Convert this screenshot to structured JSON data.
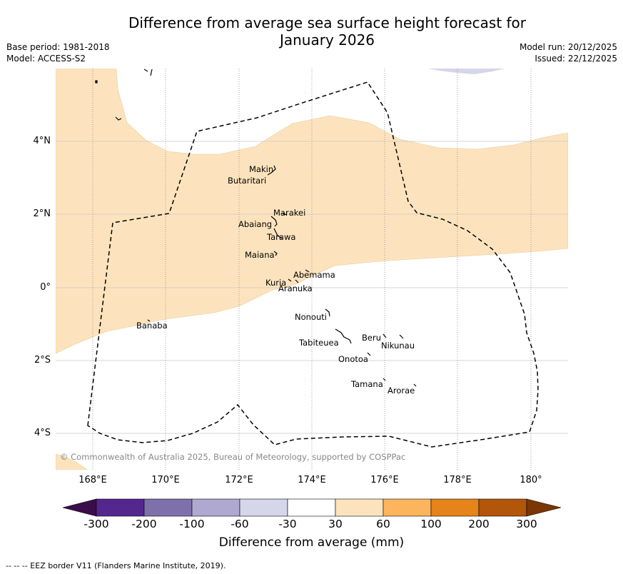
{
  "title": {
    "line1": "Difference from average sea surface height forecast for",
    "line2": "January 2026"
  },
  "meta": {
    "base_period": "Base period: 1981-2018",
    "model": "Model: ACCESS-S2",
    "model_run": "Model run: 20/12/2025",
    "issued": "Issued: 22/12/2025"
  },
  "map": {
    "lat_labels": [
      "4°N",
      "2°N",
      "0°",
      "2°S",
      "4°S"
    ],
    "lon_labels": [
      "168°E",
      "170°E",
      "172°E",
      "174°E",
      "176°E",
      "178°E",
      "180°"
    ],
    "islands": [
      {
        "name": "Makin"
      },
      {
        "name": "Butaritari"
      },
      {
        "name": "Marakei"
      },
      {
        "name": "Abaiang"
      },
      {
        "name": "Tarawa"
      },
      {
        "name": "Maiana"
      },
      {
        "name": "Abemama"
      },
      {
        "name": "Kuria"
      },
      {
        "name": "Aranuka"
      },
      {
        "name": "Nonouti"
      },
      {
        "name": "Banaba"
      },
      {
        "name": "Tabiteuea"
      },
      {
        "name": "Beru"
      },
      {
        "name": "Nikunau"
      },
      {
        "name": "Onotoa"
      },
      {
        "name": "Tamana"
      },
      {
        "name": "Arorae"
      }
    ],
    "copyright": "© Commonwealth of Australia 2025, Bureau of Meteorology, supported by COSPPac",
    "colors": {
      "positive_light": "#fde3bd",
      "negative_light": "#d5d6ea"
    }
  },
  "colorbar": {
    "title": "Difference from average (mm)",
    "ticks": [
      "-300",
      "-200",
      "-100",
      "-60",
      "-30",
      "30",
      "60",
      "100",
      "200",
      "300"
    ],
    "colors": [
      "#3b0d4b",
      "#54278f",
      "#7e71ab",
      "#afa8d1",
      "#d5d6ea",
      "#ffffff",
      "#fde3bd",
      "#fdb55d",
      "#e4841b",
      "#b2560a",
      "#7b3606"
    ]
  },
  "footer": "--  --  -- EEZ border V11 (Flanders Marine Institute, 2019)."
}
